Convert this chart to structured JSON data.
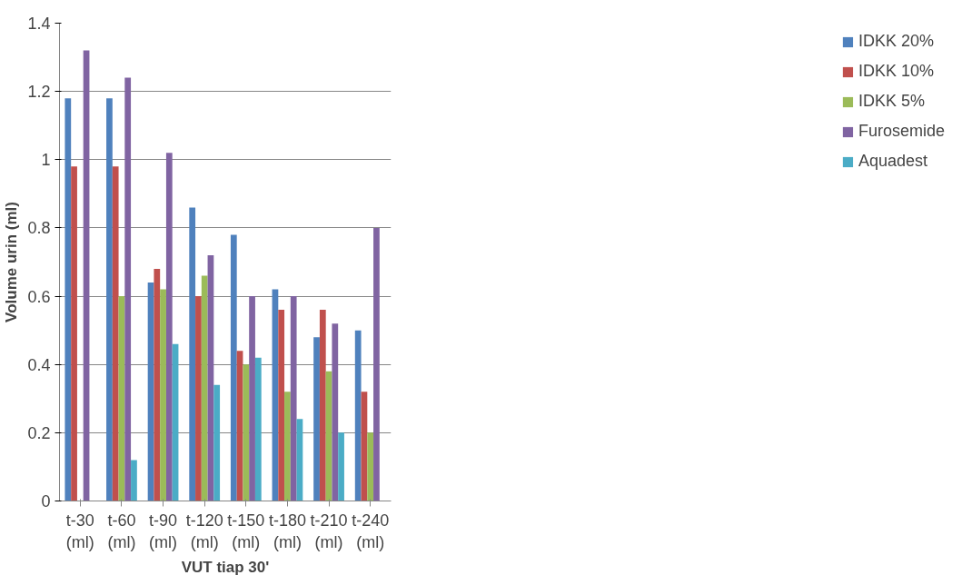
{
  "chart_data": {
    "type": "bar",
    "xlabel": "VUT tiap 30'",
    "ylabel": "Volume urin (ml)",
    "categories": [
      "t-30 (ml)",
      "t-60 (ml)",
      "t-90 (ml)",
      "t-120 (ml)",
      "t-150 (ml)",
      "t-180 (ml)",
      "t-210 (ml)",
      "t-240 (ml)"
    ],
    "series": [
      {
        "name": "IDKK 20%",
        "color": "#4f81bd",
        "values": [
          1.18,
          1.18,
          0.64,
          0.86,
          0.78,
          0.62,
          0.48,
          0.5
        ]
      },
      {
        "name": "IDKK 10%",
        "color": "#c0504d",
        "values": [
          0.98,
          0.98,
          0.68,
          0.6,
          0.44,
          0.56,
          0.56,
          0.32
        ]
      },
      {
        "name": "IDKK 5%",
        "color": "#9bbb59",
        "values": [
          null,
          0.6,
          0.62,
          0.66,
          0.4,
          0.32,
          0.38,
          0.2
        ]
      },
      {
        "name": "Furosemide",
        "color": "#8064a2",
        "values": [
          1.32,
          1.24,
          1.02,
          0.72,
          0.6,
          0.6,
          0.52,
          0.8
        ]
      },
      {
        "name": "Aquadest",
        "color": "#4bacc6",
        "values": [
          null,
          0.12,
          0.46,
          0.34,
          0.42,
          0.24,
          0.2,
          null
        ]
      }
    ],
    "ylim": [
      0,
      1.4
    ],
    "yticks": [
      0,
      0.2,
      0.4,
      0.6,
      0.8,
      1,
      1.2,
      1.4
    ],
    "grid": "y",
    "legend": "right"
  }
}
